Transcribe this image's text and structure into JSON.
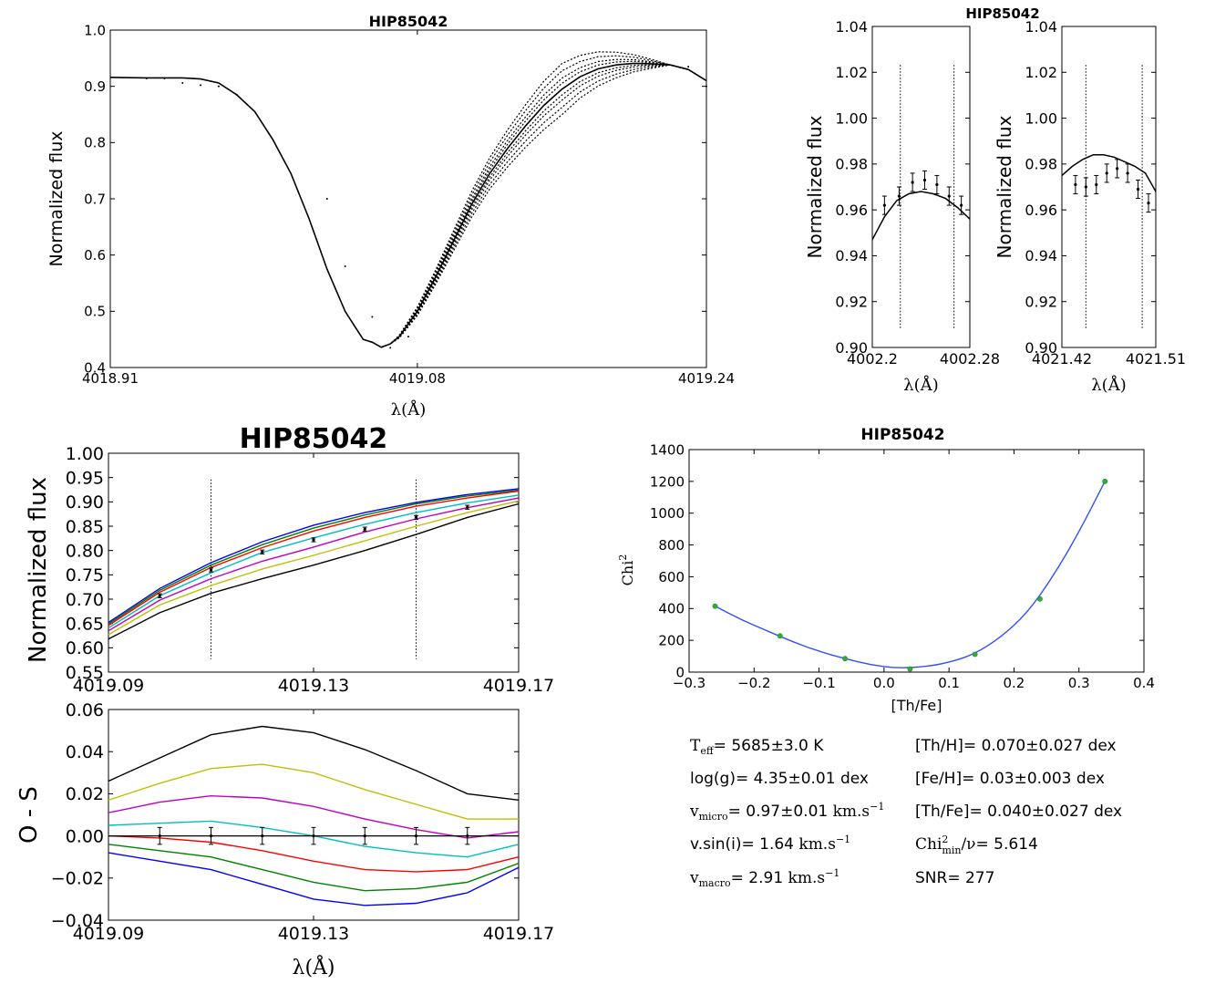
{
  "chart_data": [
    {
      "id": "top-left",
      "type": "line",
      "title": "HIP85042",
      "xlabel": "λ(Å)",
      "ylabel": "Normalized flux",
      "xlim": [
        4018.91,
        4019.24
      ],
      "ylim": [
        0.4,
        1.0
      ],
      "xticks": [
        4018.91,
        4019.08,
        4019.24
      ],
      "xtick_labels": [
        "4018.91",
        "4019.08",
        "4019.24"
      ],
      "yticks": [
        0.4,
        0.5,
        0.6,
        0.7,
        0.8,
        0.9,
        1.0
      ],
      "ytick_labels": [
        "0.4",
        "0.5",
        "0.6",
        "0.7",
        "0.8",
        "0.9",
        "1.0"
      ],
      "solid": {
        "x": [
          4018.91,
          4018.93,
          4018.95,
          4018.96,
          4018.97,
          4018.98,
          4018.99,
          4019.0,
          4019.01,
          4019.02,
          4019.03,
          4019.04,
          4019.045,
          4019.05,
          4019.055,
          4019.06,
          4019.065,
          4019.07,
          4019.08,
          4019.09,
          4019.1,
          4019.11,
          4019.12,
          4019.13,
          4019.14,
          4019.15,
          4019.16,
          4019.17,
          4019.18,
          4019.19,
          4019.2,
          4019.21,
          4019.22,
          4019.23,
          4019.24
        ],
        "y": [
          0.916,
          0.915,
          0.915,
          0.913,
          0.906,
          0.885,
          0.855,
          0.805,
          0.745,
          0.665,
          0.575,
          0.5,
          0.475,
          0.45,
          0.445,
          0.436,
          0.442,
          0.455,
          0.5,
          0.56,
          0.625,
          0.69,
          0.745,
          0.79,
          0.83,
          0.866,
          0.895,
          0.917,
          0.931,
          0.938,
          0.941,
          0.94,
          0.938,
          0.93,
          0.91
        ]
      },
      "dotted_offsets": [
        -0.035,
        -0.025,
        -0.015,
        -0.008,
        0.008,
        0.015,
        0.025,
        0.035
      ],
      "points": {
        "x": [
          4018.93,
          4018.94,
          4018.95,
          4018.96,
          4018.97,
          4018.98,
          4019.03,
          4019.04,
          4019.055,
          4019.065,
          4019.075,
          4019.23,
          4019.24
        ],
        "y": [
          0.914,
          0.914,
          0.906,
          0.902,
          0.9,
          0.885,
          0.7,
          0.58,
          0.49,
          0.435,
          0.455,
          0.935,
          0.9
        ]
      }
    },
    {
      "id": "top-mid",
      "type": "line",
      "title": "HIP85042",
      "xlabel": "λ(Å)",
      "ylabel": "Normalized flux",
      "xlim": [
        4002.2,
        4002.28
      ],
      "ylim": [
        0.9,
        1.04
      ],
      "xticks": [
        4002.2,
        4002.28
      ],
      "xtick_labels": [
        "4002.2",
        "4002.28"
      ],
      "yticks": [
        0.9,
        0.92,
        0.94,
        0.96,
        0.98,
        1.0,
        1.02,
        1.04
      ],
      "ytick_labels": [
        "0.90",
        "0.92",
        "0.94",
        "0.96",
        "0.98",
        "1.00",
        "1.02",
        "1.04"
      ],
      "vlines": [
        4002.223,
        4002.267
      ],
      "model": {
        "x": [
          4002.2,
          4002.21,
          4002.22,
          4002.23,
          4002.24,
          4002.25,
          4002.26,
          4002.27,
          4002.28
        ],
        "y": [
          0.947,
          0.957,
          0.964,
          0.967,
          0.968,
          0.967,
          0.965,
          0.961,
          0.956
        ]
      },
      "obs": {
        "x": [
          4002.21,
          4002.222,
          4002.233,
          4002.243,
          4002.253,
          4002.263,
          4002.273
        ],
        "y": [
          0.962,
          0.966,
          0.972,
          0.973,
          0.971,
          0.966,
          0.962
        ],
        "err": [
          0.004,
          0.004,
          0.004,
          0.004,
          0.004,
          0.004,
          0.004
        ]
      }
    },
    {
      "id": "top-right",
      "type": "line",
      "title": "",
      "xlabel": "λ(Å)",
      "ylabel": "Normalized flux",
      "xlim": [
        4021.42,
        4021.51
      ],
      "ylim": [
        0.9,
        1.04
      ],
      "xticks": [
        4021.42,
        4021.51
      ],
      "xtick_labels": [
        "4021.42",
        "4021.51"
      ],
      "yticks": [
        0.9,
        0.92,
        0.94,
        0.96,
        0.98,
        1.0,
        1.02,
        1.04
      ],
      "ytick_labels": [
        "0.90",
        "0.92",
        "0.94",
        "0.96",
        "0.98",
        "1.00",
        "1.02",
        "1.04"
      ],
      "vlines": [
        4021.443,
        4021.497
      ],
      "model": {
        "x": [
          4021.42,
          4021.43,
          4021.44,
          4021.45,
          4021.46,
          4021.47,
          4021.48,
          4021.49,
          4021.5,
          4021.51
        ],
        "y": [
          0.975,
          0.979,
          0.982,
          0.984,
          0.984,
          0.983,
          0.981,
          0.979,
          0.976,
          0.968
        ]
      },
      "obs": {
        "x": [
          4021.433,
          4021.443,
          4021.453,
          4021.463,
          4021.473,
          4021.483,
          4021.493,
          4021.503
        ],
        "y": [
          0.971,
          0.97,
          0.971,
          0.976,
          0.978,
          0.976,
          0.969,
          0.963
        ],
        "err": [
          0.004,
          0.004,
          0.004,
          0.004,
          0.004,
          0.004,
          0.004,
          0.004
        ]
      }
    },
    {
      "id": "mid-left",
      "type": "line",
      "title": "HIP85042",
      "xlabel": "",
      "ylabel": "Normalized flux",
      "xlim": [
        4019.09,
        4019.17
      ],
      "ylim": [
        0.55,
        1.0
      ],
      "xticks": [
        4019.09,
        4019.13,
        4019.17
      ],
      "xtick_labels": [
        "4019.09",
        "4019.13",
        "4019.17"
      ],
      "yticks": [
        0.55,
        0.6,
        0.65,
        0.7,
        0.75,
        0.8,
        0.85,
        0.9,
        0.95,
        1.0
      ],
      "ytick_labels": [
        "0.55",
        "0.60",
        "0.65",
        "0.70",
        "0.75",
        "0.80",
        "0.85",
        "0.90",
        "0.95",
        "1.00"
      ],
      "vlines": [
        4019.11,
        4019.15
      ],
      "x": [
        4019.09,
        4019.1,
        4019.11,
        4019.12,
        4019.13,
        4019.14,
        4019.15,
        4019.16,
        4019.17
      ],
      "series": [
        {
          "color": "#0000ff",
          "values": [
            0.652,
            0.722,
            0.775,
            0.818,
            0.852,
            0.878,
            0.899,
            0.915,
            0.927
          ]
        },
        {
          "color": "#008000",
          "values": [
            0.649,
            0.718,
            0.77,
            0.812,
            0.846,
            0.873,
            0.896,
            0.912,
            0.924
          ]
        },
        {
          "color": "#ff0000",
          "values": [
            0.646,
            0.714,
            0.765,
            0.806,
            0.84,
            0.868,
            0.891,
            0.908,
            0.922
          ]
        },
        {
          "color": "#00bfbf",
          "values": [
            0.641,
            0.707,
            0.754,
            0.796,
            0.826,
            0.854,
            0.878,
            0.898,
            0.914
          ]
        },
        {
          "color": "#bf00bf",
          "values": [
            0.635,
            0.698,
            0.742,
            0.778,
            0.807,
            0.838,
            0.865,
            0.888,
            0.908
          ]
        },
        {
          "color": "#bfbf00",
          "values": [
            0.627,
            0.688,
            0.728,
            0.762,
            0.79,
            0.82,
            0.85,
            0.878,
            0.902
          ]
        },
        {
          "color": "#000000",
          "values": [
            0.618,
            0.672,
            0.712,
            0.742,
            0.77,
            0.8,
            0.833,
            0.868,
            0.896
          ]
        }
      ],
      "obs": {
        "x": [
          4019.1,
          4019.11,
          4019.12,
          4019.13,
          4019.14,
          4019.15,
          4019.16
        ],
        "y": [
          0.707,
          0.76,
          0.797,
          0.822,
          0.844,
          0.868,
          0.889
        ],
        "err": [
          0.004,
          0.004,
          0.004,
          0.004,
          0.004,
          0.004,
          0.004
        ]
      }
    },
    {
      "id": "bottom-left",
      "type": "line",
      "title": "",
      "xlabel": "λ(Å)",
      "ylabel": "O - S",
      "xlim": [
        4019.09,
        4019.17
      ],
      "ylim": [
        -0.04,
        0.06
      ],
      "xticks": [
        4019.09,
        4019.13,
        4019.17
      ],
      "xtick_labels": [
        "4019.09",
        "4019.13",
        "4019.17"
      ],
      "yticks": [
        -0.04,
        -0.02,
        0.0,
        0.02,
        0.04,
        0.06
      ],
      "ytick_labels": [
        "−0.04",
        "−0.02",
        "0.00",
        "0.02",
        "0.04",
        "0.06"
      ],
      "x": [
        4019.09,
        4019.1,
        4019.11,
        4019.12,
        4019.13,
        4019.14,
        4019.15,
        4019.16,
        4019.17
      ],
      "series": [
        {
          "color": "#000000",
          "values": [
            0.026,
            0.037,
            0.048,
            0.052,
            0.049,
            0.041,
            0.031,
            0.02,
            0.017
          ]
        },
        {
          "color": "#bfbf00",
          "values": [
            0.017,
            0.025,
            0.032,
            0.034,
            0.03,
            0.022,
            0.015,
            0.008,
            0.008
          ]
        },
        {
          "color": "#bf00bf",
          "values": [
            0.011,
            0.016,
            0.019,
            0.018,
            0.014,
            0.008,
            0.003,
            -0.001,
            0.002
          ]
        },
        {
          "color": "#00bfbf",
          "values": [
            0.005,
            0.006,
            0.007,
            0.004,
            0.0,
            -0.005,
            -0.008,
            -0.01,
            -0.004
          ]
        },
        {
          "color": "#ff0000",
          "values": [
            0.0,
            -0.001,
            -0.003,
            -0.007,
            -0.012,
            -0.016,
            -0.017,
            -0.016,
            -0.01
          ]
        },
        {
          "color": "#008000",
          "values": [
            -0.004,
            -0.007,
            -0.01,
            -0.016,
            -0.022,
            -0.026,
            -0.025,
            -0.022,
            -0.013
          ]
        },
        {
          "color": "#0000ff",
          "values": [
            -0.008,
            -0.012,
            -0.016,
            -0.023,
            -0.03,
            -0.033,
            -0.032,
            -0.027,
            -0.015
          ]
        }
      ],
      "zero_line": true,
      "obs": {
        "x": [
          4019.1,
          4019.11,
          4019.12,
          4019.13,
          4019.14,
          4019.15,
          4019.16
        ],
        "y": [
          0.0,
          0.0,
          0.0,
          0.0,
          0.0,
          0.0,
          0.0
        ],
        "err": [
          0.004,
          0.004,
          0.004,
          0.004,
          0.004,
          0.004,
          0.004
        ]
      }
    },
    {
      "id": "bottom-right",
      "type": "line",
      "title": "HIP85042",
      "xlabel": "[Th/Fe]",
      "ylabel": "Chi",
      "ylabel_sup": "2",
      "xlim": [
        -0.3,
        0.4
      ],
      "ylim": [
        0,
        1400
      ],
      "xticks": [
        -0.3,
        -0.2,
        -0.1,
        0.0,
        0.1,
        0.2,
        0.3,
        0.4
      ],
      "xtick_labels": [
        "−0.3",
        "−0.2",
        "−0.1",
        "0.0",
        "0.1",
        "0.2",
        "0.3",
        "0.4"
      ],
      "yticks": [
        0,
        200,
        400,
        600,
        800,
        1000,
        1200,
        1400
      ],
      "ytick_labels": [
        "0",
        "200",
        "400",
        "600",
        "800",
        "1000",
        "1200",
        "1400"
      ],
      "fit": {
        "x": [
          -0.26,
          -0.22,
          -0.18,
          -0.14,
          -0.1,
          -0.06,
          -0.02,
          0.02,
          0.06,
          0.1,
          0.14,
          0.18,
          0.22,
          0.26,
          0.3,
          0.34
        ],
        "y": [
          415,
          330,
          260,
          190,
          130,
          85,
          45,
          25,
          32,
          60,
          115,
          220,
          370,
          600,
          880,
          1200
        ]
      },
      "points": {
        "x": [
          -0.26,
          -0.16,
          -0.06,
          0.04,
          0.14,
          0.24,
          0.34
        ],
        "y": [
          415,
          228,
          85,
          20,
          112,
          460,
          1200
        ]
      }
    }
  ],
  "params": {
    "teff": {
      "sym": "T",
      "sub": "eff",
      "val": "= 5685±3.0 K"
    },
    "logg": {
      "text": "log(g)= 4.35±0.01 dex"
    },
    "vmicro": {
      "sym": "v",
      "sub": "micro",
      "val": "= 0.97±0.01 ",
      "unit": "km.s",
      "sup": "−1"
    },
    "vsini": {
      "text": "v.sin(i)= 1.64 ",
      "unit": "km.s",
      "sup": "−1"
    },
    "vmacro": {
      "sym": "v",
      "sub": "macro",
      "val": "= 2.91 ",
      "unit": "km.s",
      "sup": "−1"
    },
    "thh": {
      "text": "[Th/H]= 0.070±0.027 dex"
    },
    "feh": {
      "text": "[Fe/H]= 0.03±0.003 dex"
    },
    "thfe": {
      "text": "[Th/Fe]= 0.040±0.027 dex"
    },
    "chi2": {
      "sym": "Chi",
      "sup": "2",
      "sub": "min",
      "tail": "/ν",
      "val": "= 5.614"
    },
    "snr": {
      "text": "SNR= 277"
    }
  }
}
